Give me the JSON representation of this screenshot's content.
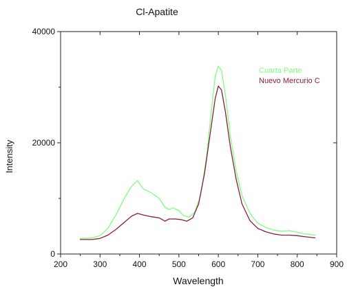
{
  "chart_data": {
    "type": "line",
    "title": "Cl-Apatite",
    "xlabel": "Wavelength",
    "ylabel": "Intensity",
    "xlim": [
      200,
      900
    ],
    "ylim": [
      0,
      40000
    ],
    "x_ticks": [
      200,
      300,
      400,
      500,
      600,
      700,
      800,
      900
    ],
    "y_ticks": [
      0,
      20000,
      40000
    ],
    "x_tick_labels": [
      "200",
      "300",
      "400",
      "500",
      "600",
      "700",
      "800",
      "900"
    ],
    "y_tick_labels": [
      "0",
      "20000",
      "40000"
    ],
    "grid": false,
    "legend_position": "top-right",
    "series": [
      {
        "name": "Cuarta Parte",
        "color": "#7dff7d",
        "points": [
          [
            250,
            2800
          ],
          [
            280,
            2900
          ],
          [
            300,
            3300
          ],
          [
            320,
            4600
          ],
          [
            340,
            7000
          ],
          [
            360,
            9800
          ],
          [
            380,
            12200
          ],
          [
            395,
            13200
          ],
          [
            410,
            11700
          ],
          [
            430,
            11000
          ],
          [
            450,
            10000
          ],
          [
            465,
            8400
          ],
          [
            475,
            8000
          ],
          [
            485,
            8300
          ],
          [
            500,
            7800
          ],
          [
            510,
            7000
          ],
          [
            525,
            6600
          ],
          [
            540,
            7500
          ],
          [
            555,
            10500
          ],
          [
            570,
            17500
          ],
          [
            582,
            25500
          ],
          [
            592,
            32000
          ],
          [
            600,
            33800
          ],
          [
            608,
            33000
          ],
          [
            618,
            28500
          ],
          [
            630,
            21500
          ],
          [
            645,
            15000
          ],
          [
            660,
            10500
          ],
          [
            680,
            7300
          ],
          [
            700,
            5500
          ],
          [
            720,
            4800
          ],
          [
            740,
            4300
          ],
          [
            760,
            4100
          ],
          [
            780,
            4200
          ],
          [
            800,
            3900
          ],
          [
            820,
            3600
          ],
          [
            845,
            3400
          ]
        ]
      },
      {
        "name": "Nuevo Mercurio C",
        "color": "#8b1a3c",
        "points": [
          [
            250,
            2600
          ],
          [
            280,
            2600
          ],
          [
            300,
            2800
          ],
          [
            320,
            3400
          ],
          [
            340,
            4400
          ],
          [
            360,
            5600
          ],
          [
            380,
            6800
          ],
          [
            395,
            7300
          ],
          [
            410,
            7000
          ],
          [
            430,
            6700
          ],
          [
            450,
            6500
          ],
          [
            465,
            5900
          ],
          [
            475,
            6300
          ],
          [
            490,
            6300
          ],
          [
            505,
            6200
          ],
          [
            520,
            5900
          ],
          [
            535,
            6500
          ],
          [
            550,
            9000
          ],
          [
            565,
            14500
          ],
          [
            580,
            22000
          ],
          [
            592,
            28000
          ],
          [
            600,
            30200
          ],
          [
            608,
            29500
          ],
          [
            618,
            25500
          ],
          [
            630,
            19500
          ],
          [
            645,
            13500
          ],
          [
            660,
            9000
          ],
          [
            680,
            6000
          ],
          [
            700,
            4600
          ],
          [
            720,
            4000
          ],
          [
            740,
            3600
          ],
          [
            760,
            3400
          ],
          [
            780,
            3400
          ],
          [
            800,
            3300
          ],
          [
            820,
            3100
          ],
          [
            845,
            2900
          ]
        ]
      }
    ]
  }
}
